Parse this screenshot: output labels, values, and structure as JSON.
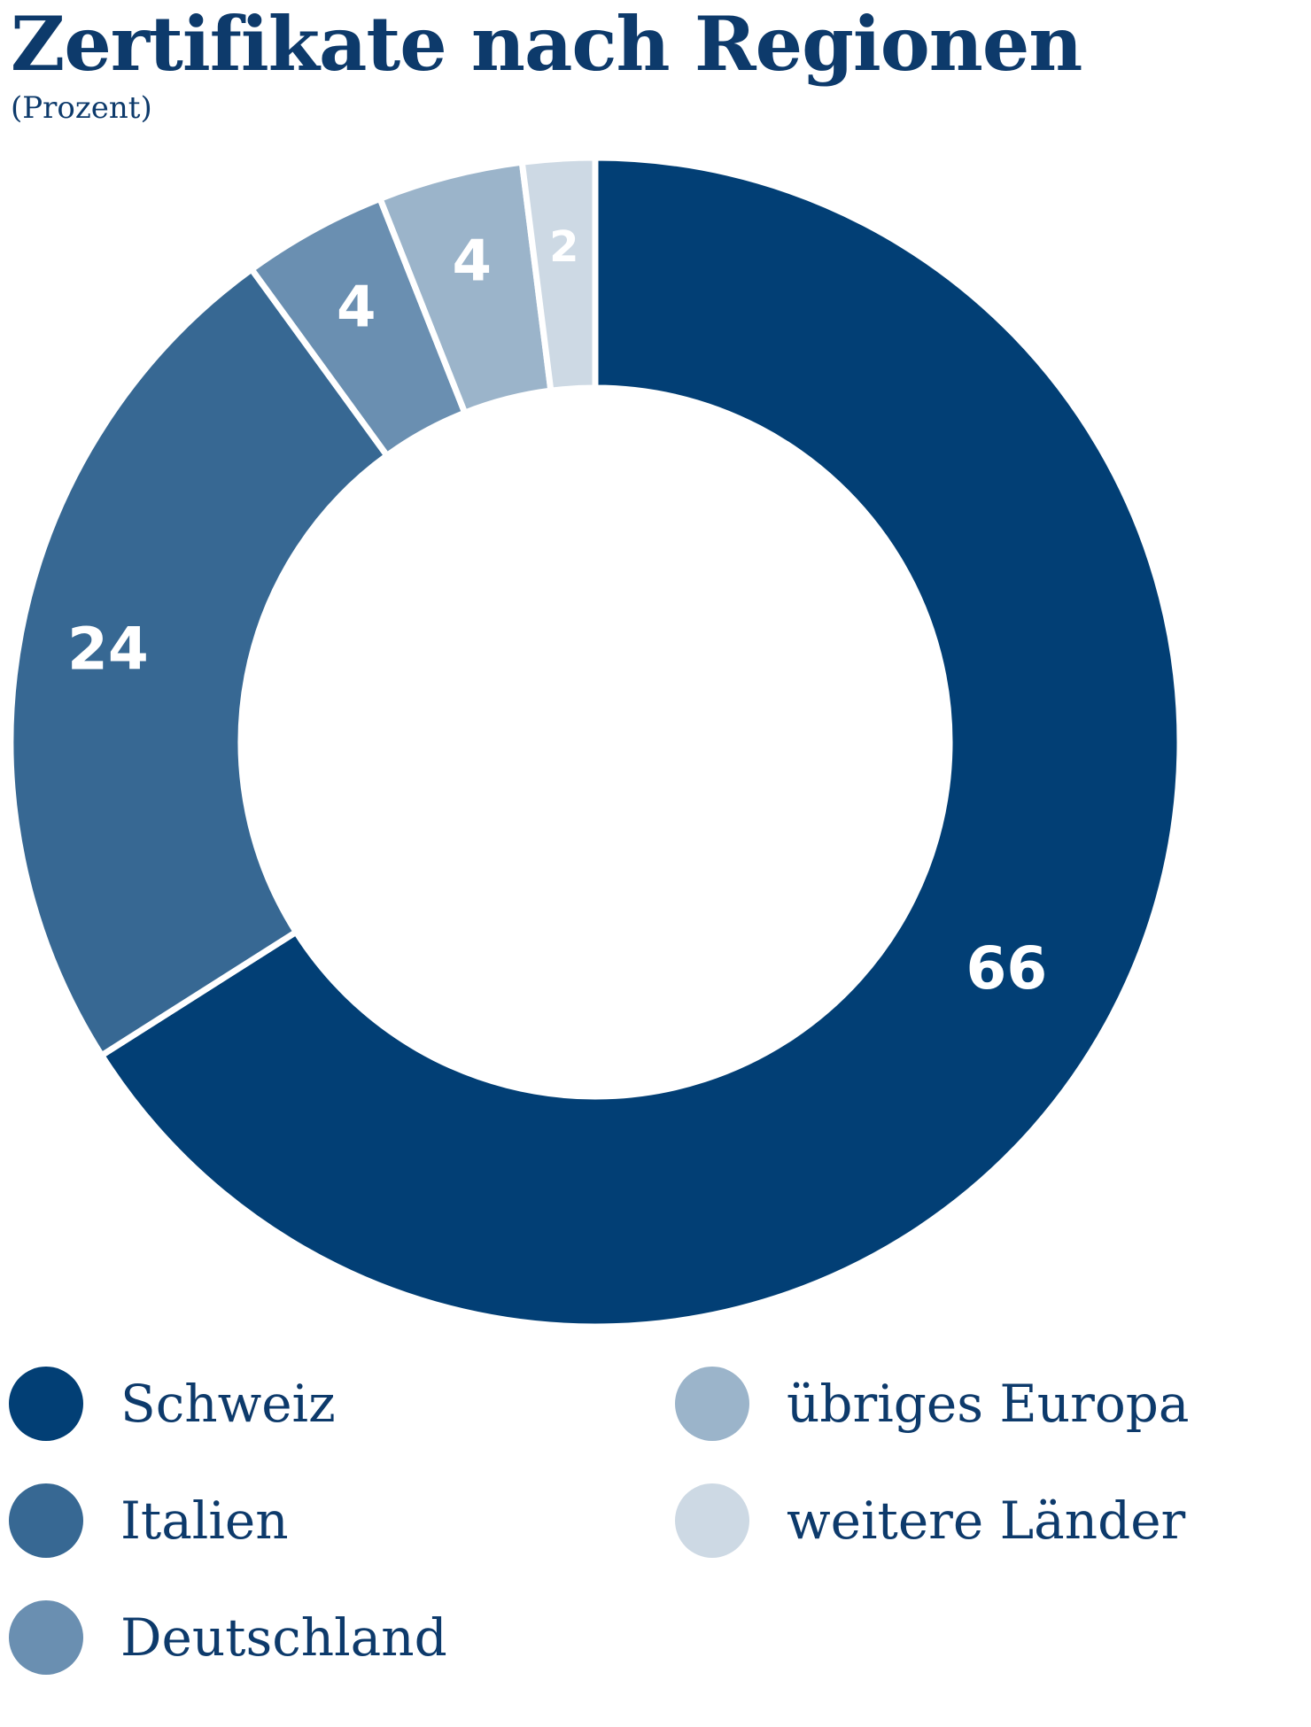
{
  "title": "Zertifikate nach Regionen",
  "subtitle": "(Prozent)",
  "chart_data": {
    "type": "pie",
    "style": "donut",
    "title": "Zertifikate nach Regionen",
    "subtitle": "(Prozent)",
    "unit": "Prozent",
    "categories": [
      "Schweiz",
      "Italien",
      "Deutschland",
      "übriges Europa",
      "weitere Länder"
    ],
    "values": [
      66,
      24,
      4,
      4,
      2
    ],
    "value_labels": [
      "66",
      "24",
      "4",
      "4",
      "2"
    ],
    "colors": [
      "#023f75",
      "#376893",
      "#6a8fb1",
      "#9bb4ca",
      "#cdd9e4"
    ],
    "start": "top, clockwise",
    "legend_position": "bottom"
  },
  "legend": {
    "items": [
      {
        "label": "Schweiz",
        "color": "#023f75"
      },
      {
        "label": "Italien",
        "color": "#376893"
      },
      {
        "label": "Deutschland",
        "color": "#6a8fb1"
      },
      {
        "label": "übriges Europa",
        "color": "#9bb4ca"
      },
      {
        "label": "weitere Länder",
        "color": "#cdd9e4"
      }
    ]
  }
}
